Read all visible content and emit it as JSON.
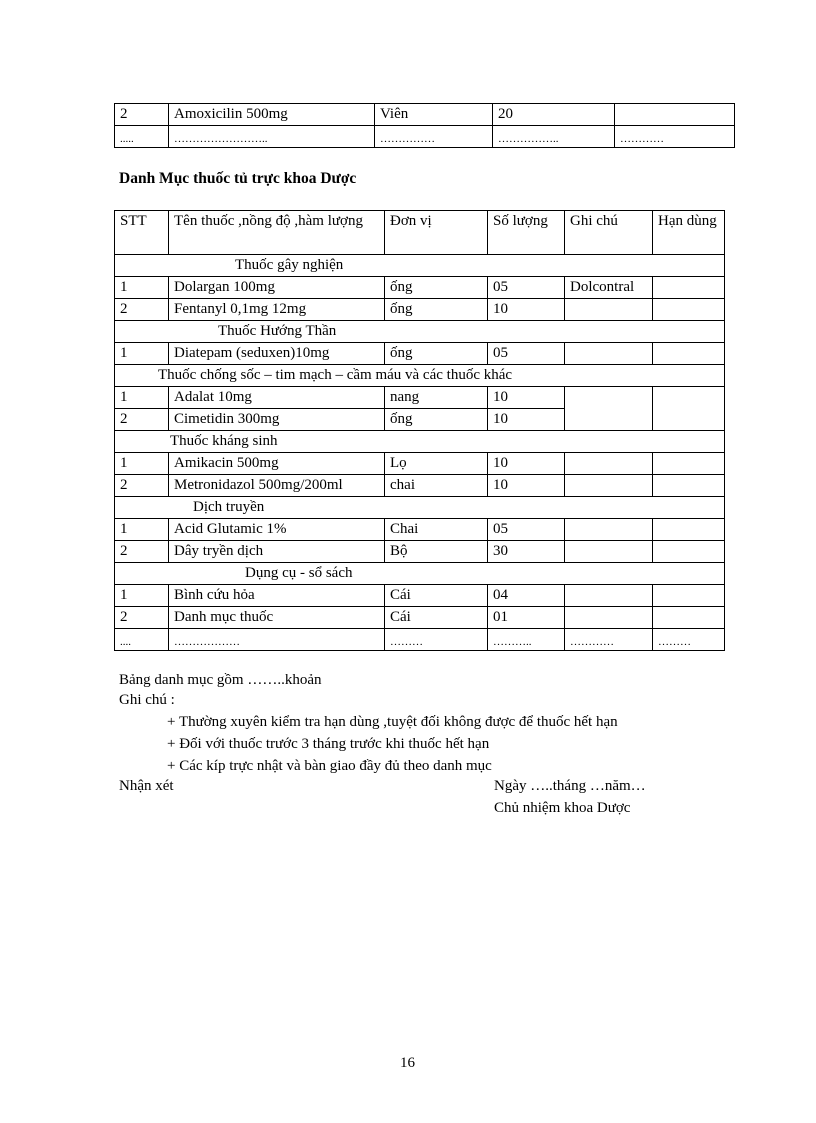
{
  "top_table": {
    "rows": [
      [
        "2",
        "Amoxicilin 500mg",
        "Viên",
        "20",
        ""
      ],
      [
        ".....",
        "……………………..",
        "……………",
        "……………..",
        "…………"
      ]
    ]
  },
  "title": "Danh Mục thuốc tủ trực khoa Dược",
  "main_table": {
    "headers": [
      "STT",
      "Tên  thuốc  ,nồng  độ  ,hàm lượng",
      "Đơn vị",
      "Số lượng",
      "Ghi chú",
      "Hạn dùng"
    ],
    "rows": [
      {
        "section": "Thuốc  gây nghiện",
        "indent": 120
      },
      {
        "cells": [
          "1",
          "Dolargan 100mg",
          "ống",
          "05",
          "Dolcontral",
          ""
        ]
      },
      {
        "cells": [
          "2",
          "Fentanyl 0,1mg 12mg",
          "ống",
          "10",
          "",
          ""
        ]
      },
      {
        "section": "Thuốc  Hướng Thần",
        "indent": 103
      },
      {
        "cells": [
          "1",
          "Diatepam (seduxen)10mg",
          "ống",
          "05",
          "",
          ""
        ]
      },
      {
        "section": "Thuốc  chống sốc – tim mạch – cầm máu  và  các thuốc khác",
        "indent": 43
      },
      {
        "cells": [
          "1",
          "Adalat  10mg",
          "nang",
          "10",
          "",
          ""
        ],
        "merge_start": true
      },
      {
        "cells": [
          "2",
          "Cimetidin 300mg",
          "ống",
          "10"
        ],
        "merge_cont": true
      },
      {
        "section": "Thuốc  kháng  sinh",
        "indent": 55
      },
      {
        "cells": [
          "1",
          "Amikacin  500mg",
          "Lọ",
          "10",
          "",
          ""
        ]
      },
      {
        "cells": [
          "2",
          "Metronidazol 500mg/200ml",
          "chai",
          "10",
          "",
          ""
        ]
      },
      {
        "section": "Dịch truyền",
        "indent": 78
      },
      {
        "cells": [
          "1",
          "Acid Glutamic 1%",
          "Chai",
          "05",
          "",
          ""
        ]
      },
      {
        "cells": [
          "2",
          "Dây tryền dịch",
          "Bộ",
          "30",
          "",
          ""
        ]
      },
      {
        "section": "Dụng  cụ - sổ sách",
        "indent": 130
      },
      {
        "cells": [
          "1",
          "Bình cứu hỏa",
          "Cái",
          "04",
          "",
          ""
        ]
      },
      {
        "cells": [
          "2",
          "Danh  mục thuốc",
          "Cái",
          "01",
          "",
          ""
        ]
      },
      {
        "cells": [
          "....",
          "………………",
          "………",
          "………..",
          "…………",
          "………"
        ],
        "dots": true
      }
    ]
  },
  "footer": {
    "summary": "Bảng danh mục gồm ……..khoản",
    "note_label": "Ghi chú :",
    "notes": [
      "+ Thường  xuyên kiểm tra hạn dùng ,tuyệt đối không được để thuốc hết hạn",
      "+  Đối với thuốc trước 3 tháng trước khi thuốc hết hạn",
      "+  Các kíp trực nhật và bàn giao đầy đủ theo danh mục"
    ],
    "comment_label": "Nhận xét",
    "date_line": "Ngày  …..tháng  …năm…",
    "signer": "Chủ nhiệm khoa Dược"
  },
  "page_number": "16"
}
